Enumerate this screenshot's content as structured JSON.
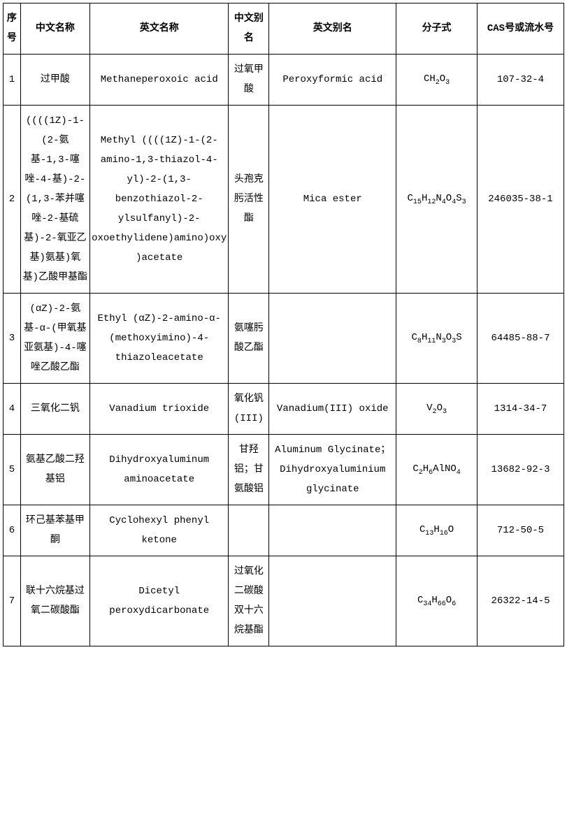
{
  "table": {
    "headers": {
      "seq": "序号",
      "cn_name": "中文名称",
      "en_name": "英文名称",
      "cn_alias": "中文别名",
      "en_alias": "英文别名",
      "formula": "分子式",
      "cas": "CAS号或流水号"
    },
    "rows": [
      {
        "seq": "1",
        "cn_name": "过甲酸",
        "en_name": "Methaneperoxoic acid",
        "cn_alias": "过氧甲酸",
        "en_alias": "Peroxyformic acid",
        "formula_html": "CH<sub>2</sub>O<sub>3</sub>",
        "cas": "107-32-4"
      },
      {
        "seq": "2",
        "cn_name": "((((1Z)-1-(2-氨基-1,3-噻唑-4-基)-2-(1,3-苯并噻唑-2-基硫基)-2-氧亚乙基)氨基)氧基)乙酸甲基酯",
        "en_name": "Methyl ((((1Z)-1-(2-amino-1,3-thiazol-4-yl)-2-(1,3-benzothiazol-2-ylsulfanyl)-2-oxoethylidene)amino)oxy)acetate",
        "cn_alias": "头孢克肟活性酯",
        "en_alias": "Mica ester",
        "formula_html": "C<sub>15</sub>H<sub>12</sub>N<sub>4</sub>O<sub>4</sub>S<sub>3</sub>",
        "cas": "246035-38-1"
      },
      {
        "seq": "3",
        "cn_name": "(αZ)-2-氨基-α-(甲氧基亚氨基)-4-噻唑乙酸乙酯",
        "en_name": "Ethyl (αZ)-2-amino-α-(methoxyimino)-4-thiazoleacetate",
        "cn_alias": "氨噻肟酸乙酯",
        "en_alias": "",
        "formula_html": "C<sub>8</sub>H<sub>11</sub>N<sub>3</sub>O<sub>3</sub>S",
        "cas": "64485-88-7"
      },
      {
        "seq": "4",
        "cn_name": "三氧化二钒",
        "en_name": "Vanadium trioxide",
        "cn_alias": "氧化钒(III)",
        "en_alias": "Vanadium(III) oxide",
        "formula_html": "V<sub>2</sub>O<sub>3</sub>",
        "cas": "1314-34-7"
      },
      {
        "seq": "5",
        "cn_name": "氨基乙酸二羟基铝",
        "en_name": "Dihydroxyaluminum aminoacetate",
        "cn_alias": "甘羟铝；甘氨酸铝",
        "en_alias": "Aluminum Glycinate；Dihydroxyaluminium glycinate",
        "formula_html": "C<sub>2</sub>H<sub>6</sub>AlNO<sub>4</sub>",
        "cas": "13682-92-3"
      },
      {
        "seq": "6",
        "cn_name": "环己基苯基甲酮",
        "en_name": "Cyclohexyl phenyl ketone",
        "cn_alias": "",
        "en_alias": "",
        "formula_html": "C<sub>13</sub>H<sub>16</sub>O",
        "cas": "712-50-5"
      },
      {
        "seq": "7",
        "cn_name": "联十六烷基过氧二碳酸酯",
        "en_name": "Dicetyl peroxydicarbonate",
        "cn_alias": "过氧化二碳酸双十六烷基酯",
        "en_alias": "",
        "formula_html": "C<sub>34</sub>H<sub>66</sub>O<sub>6</sub>",
        "cas": "26322-14-5"
      }
    ],
    "style": {
      "border_color": "#000000",
      "background_color": "#ffffff",
      "text_color": "#000000",
      "header_font_weight": "bold",
      "body_font_size_pt": 10,
      "line_height": 2.0,
      "column_widths_pct": [
        3,
        12,
        24,
        7,
        22,
        14,
        15
      ]
    }
  }
}
